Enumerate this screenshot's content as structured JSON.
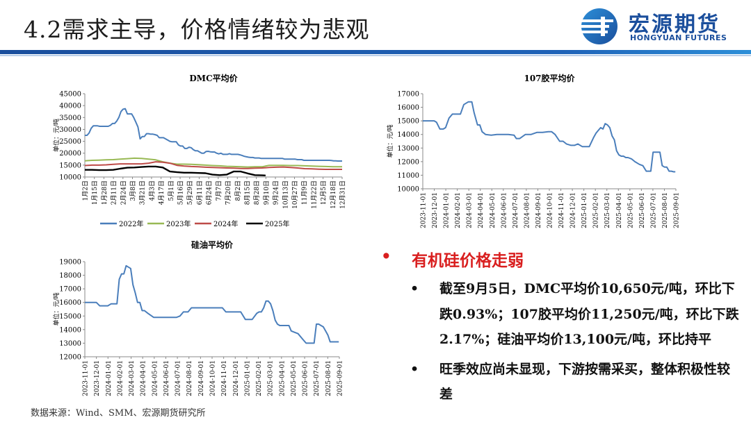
{
  "title": "4.2需求主导，价格情绪较为悲观",
  "logo": {
    "cn": "宏源期货",
    "en": "HONGYUAN FUTURES",
    "brand_color": "#1a4e9c"
  },
  "chart_data": [
    {
      "type": "line",
      "title": "DMC平均价",
      "ylabel": "单位：元/吨",
      "ylim": [
        10000,
        45000
      ],
      "yticks": [
        10000,
        15000,
        20000,
        25000,
        30000,
        35000,
        40000,
        45000
      ],
      "xticks": [
        "1月2日",
        "1月15日",
        "1月28日",
        "2月11日",
        "2月24日",
        "3月8日",
        "3月21日",
        "4月3日",
        "4月17日",
        "5月1日",
        "5月16日",
        "5月29日",
        "6月11日",
        "6月24日",
        "7月7日",
        "7月20日",
        "8月2日",
        "8月15日",
        "8月28日",
        "9月10日",
        "9月24日",
        "10月13日",
        "10月27日",
        "11月9日",
        "11月22日",
        "12月5日",
        "12月18日",
        "12月31日"
      ],
      "legend_position": "bottom",
      "series": [
        {
          "name": "2022年",
          "color": "#4a7ebb",
          "x": [
            0,
            3,
            6,
            9,
            12,
            15,
            18,
            21,
            24,
            27,
            30,
            33,
            36,
            39,
            42,
            45,
            48,
            51,
            54,
            57,
            60,
            63,
            66,
            69,
            72,
            75,
            78,
            81,
            84,
            87,
            90,
            93,
            96,
            99,
            102,
            105,
            108,
            111,
            114,
            117,
            120,
            123,
            126,
            129,
            132,
            135,
            138,
            141,
            144,
            147,
            150,
            153,
            156,
            159,
            162,
            165,
            168,
            171,
            174,
            177,
            180,
            183,
            186,
            189,
            192,
            195,
            198,
            201,
            204,
            207,
            210,
            213,
            216,
            219,
            222,
            225,
            228,
            231,
            234,
            237,
            240,
            243,
            246,
            249,
            252,
            255,
            258,
            261,
            264,
            267,
            270,
            273,
            276,
            279,
            282,
            285,
            288,
            291,
            294,
            297,
            300,
            303,
            306,
            309,
            312,
            315,
            318,
            321,
            324,
            327,
            330,
            333,
            336,
            339,
            342,
            345,
            348,
            351,
            354,
            357,
            360,
            363
          ],
          "y": [
            27500,
            27500,
            28500,
            30500,
            31500,
            31500,
            31500,
            31300,
            31300,
            31300,
            31300,
            31300,
            31700,
            32500,
            32500,
            33500,
            35000,
            37500,
            38500,
            38700,
            36500,
            36500,
            36500,
            35000,
            33000,
            31000,
            26000,
            27000,
            27000,
            28200,
            28200,
            28000,
            28000,
            27800,
            27500,
            26500,
            26500,
            26500,
            26000,
            25500,
            25000,
            24800,
            24800,
            24800,
            23500,
            23000,
            23000,
            22000,
            22000,
            22500,
            22300,
            21500,
            21000,
            21000,
            20500,
            20000,
            20000,
            20700,
            20800,
            20600,
            20500,
            20500,
            20000,
            19700,
            20000,
            19500,
            19500,
            19500,
            19800,
            19500,
            19500,
            19500,
            19500,
            19300,
            19000,
            18700,
            18500,
            18300,
            18200,
            18200,
            18000,
            18000,
            18000,
            17800,
            17800,
            17800,
            17800,
            17800,
            17800,
            17800,
            17800,
            17800,
            17800,
            17800,
            17500,
            17500,
            17500,
            17500,
            17500,
            17500,
            17300,
            17300,
            17300,
            17000,
            17000,
            17000,
            17000,
            17000,
            17000,
            17000,
            17000,
            17000,
            17000,
            17000,
            17000,
            17000,
            16900,
            16800,
            16800,
            16700,
            16700,
            16700
          ]
        },
        {
          "name": "2023年",
          "color": "#98b954",
          "x": [
            0,
            10,
            20,
            30,
            40,
            50,
            60,
            70,
            80,
            90,
            100,
            110,
            120,
            130,
            140,
            150,
            160,
            170,
            180,
            190,
            200,
            210,
            220,
            230,
            240,
            250,
            260,
            270,
            280,
            290,
            300,
            310,
            320,
            330,
            340,
            350,
            363
          ],
          "y": [
            16800,
            17000,
            17100,
            17200,
            17300,
            17500,
            17700,
            17900,
            17800,
            17500,
            17200,
            16400,
            15800,
            15400,
            15400,
            15300,
            15200,
            15000,
            14800,
            14700,
            14500,
            14400,
            14300,
            14200,
            14300,
            14300,
            14900,
            14900,
            14900,
            14800,
            14800,
            14700,
            14600,
            14500,
            14400,
            14300,
            14300
          ]
        },
        {
          "name": "2024年",
          "color": "#be4b48",
          "x": [
            0,
            10,
            20,
            30,
            40,
            50,
            60,
            70,
            80,
            90,
            100,
            110,
            120,
            130,
            140,
            150,
            160,
            170,
            180,
            190,
            200,
            210,
            220,
            230,
            240,
            250,
            260,
            270,
            280,
            290,
            300,
            310,
            320,
            330,
            340,
            350,
            363
          ],
          "y": [
            14800,
            15000,
            15000,
            15100,
            15300,
            15500,
            15500,
            15500,
            15500,
            15800,
            16400,
            16200,
            15800,
            14900,
            14600,
            14400,
            14300,
            14100,
            14000,
            13900,
            13800,
            13700,
            13600,
            13600,
            13700,
            13800,
            14000,
            14100,
            14200,
            14000,
            13800,
            13500,
            13400,
            13300,
            13200,
            13200,
            13200
          ]
        },
        {
          "name": "2025年",
          "color": "#000000",
          "x": [
            0,
            10,
            20,
            30,
            40,
            50,
            60,
            70,
            80,
            90,
            100,
            110,
            120,
            130,
            140,
            150,
            160,
            170,
            180,
            190,
            200,
            210,
            220,
            230,
            240,
            250,
            255
          ],
          "y": [
            13000,
            13000,
            12900,
            12900,
            13000,
            13500,
            13900,
            14000,
            14200,
            14400,
            14400,
            14000,
            12300,
            12000,
            11800,
            11800,
            11700,
            11600,
            11000,
            10800,
            11000,
            12300,
            12300,
            11500,
            10800,
            10700,
            10650
          ]
        }
      ]
    },
    {
      "type": "line",
      "title": "107胶平均价",
      "ylabel": "单位：元/吨",
      "ylim": [
        10000,
        17000
      ],
      "yticks": [
        10000,
        11000,
        12000,
        13000,
        14000,
        15000,
        16000,
        17000
      ],
      "xticks": [
        "2023-11-01",
        "2023-12-01",
        "2024-01-01",
        "2024-02-01",
        "2024-03-01",
        "2024-04-01",
        "2024-05-01",
        "2024-06-01",
        "2024-07-01",
        "2024-08-01",
        "2024-09-01",
        "2024-10-01",
        "2024-11-01",
        "2024-12-01",
        "2025-01-01",
        "2025-02-01",
        "2025-03-01",
        "2025-04-01",
        "2025-05-01",
        "2025-06-01",
        "2025-07-01",
        "2025-08-01",
        "2025-09-01"
      ],
      "series": [
        {
          "name": "",
          "color": "#4a7ebb",
          "x": [
            0,
            0.5,
            1,
            1.2,
            1.5,
            1.8,
            2,
            2.3,
            2.6,
            3,
            3.3,
            3.6,
            4,
            4.3,
            4.5,
            4.8,
            5,
            5.2,
            5.5,
            6,
            6.5,
            7,
            7.5,
            8,
            8.2,
            8.5,
            9,
            9.5,
            10,
            10.5,
            11,
            11.3,
            11.6,
            12,
            12.3,
            12.6,
            13,
            13.3,
            13.6,
            14,
            14.3,
            14.6,
            15,
            15.2,
            15.4,
            15.6,
            15.8,
            16,
            16.2,
            16.4,
            16.6,
            16.8,
            17,
            17.2,
            17.4,
            17.6,
            17.8,
            18,
            18.3,
            18.6,
            19,
            19.3,
            19.6,
            20,
            20.2,
            20.4,
            20.6,
            20.8,
            21,
            21.2,
            21.4,
            21.6,
            21.8,
            22,
            22.15
          ],
          "y": [
            15000,
            15000,
            15000,
            14900,
            14400,
            14400,
            14500,
            15200,
            15500,
            15500,
            15500,
            16200,
            16400,
            16400,
            15600,
            14700,
            14700,
            14200,
            14000,
            13950,
            14000,
            14000,
            14000,
            13950,
            13700,
            13700,
            14000,
            14000,
            14150,
            14150,
            14200,
            14200,
            14000,
            13500,
            13500,
            13300,
            13200,
            13200,
            13300,
            13100,
            13100,
            13100,
            13800,
            14100,
            14300,
            14500,
            14400,
            14800,
            14700,
            14500,
            13900,
            13600,
            12800,
            12500,
            12400,
            12400,
            12300,
            12300,
            12200,
            12000,
            11800,
            11700,
            11300,
            11300,
            12700,
            12700,
            12700,
            12700,
            11700,
            11600,
            11600,
            11300,
            11300,
            11250,
            11250
          ]
        }
      ]
    },
    {
      "type": "line",
      "title": "硅油平均价",
      "ylabel": "单位：元/吨",
      "ylim": [
        12000,
        19000
      ],
      "yticks": [
        12000,
        13000,
        14000,
        15000,
        16000,
        17000,
        18000,
        19000
      ],
      "xticks": [
        "2023-11-01",
        "2023-12-01",
        "2024-01-01",
        "2024-02-01",
        "2024-03-01",
        "2024-04-01",
        "2024-05-01",
        "2024-06-01",
        "2024-07-01",
        "2024-08-01",
        "2024-09-01",
        "2024-10-01",
        "2024-11-01",
        "2024-12-01",
        "2025-01-01",
        "2025-02-01",
        "2025-03-01",
        "2025-04-01",
        "2025-05-01",
        "2025-06-01",
        "2025-07-01",
        "2025-08-01",
        "2025-09-01"
      ],
      "series": [
        {
          "name": "",
          "color": "#4a7ebb",
          "x": [
            0,
            0.5,
            1,
            1.3,
            1.6,
            2,
            2.3,
            2.6,
            2.8,
            3,
            3.2,
            3.4,
            3.6,
            3.8,
            4,
            4.2,
            4.4,
            4.6,
            4.8,
            5,
            5.2,
            5.5,
            6,
            6.5,
            7,
            7.5,
            8,
            8.3,
            8.6,
            9,
            9.3,
            9.6,
            10,
            10.5,
            11,
            11.5,
            12,
            12.3,
            12.6,
            13,
            13.3,
            13.6,
            14,
            14.3,
            14.6,
            15,
            15.2,
            15.4,
            15.6,
            15.8,
            16,
            16.2,
            16.4,
            16.6,
            16.8,
            17,
            17.2,
            17.4,
            17.6,
            17.8,
            18,
            18.3,
            18.6,
            19,
            19.3,
            19.6,
            20,
            20.2,
            20.4,
            20.6,
            20.8,
            21,
            21.2,
            21.4,
            21.6,
            21.8,
            22,
            22.15
          ],
          "y": [
            16000,
            16000,
            16000,
            15750,
            15750,
            15750,
            15900,
            15900,
            15900,
            17700,
            18100,
            18100,
            18700,
            18600,
            18500,
            17300,
            16700,
            16000,
            16000,
            15400,
            15400,
            15200,
            14900,
            14900,
            14900,
            14900,
            14900,
            15000,
            15300,
            15300,
            15600,
            15600,
            15600,
            15600,
            15600,
            15600,
            15600,
            15300,
            15300,
            15300,
            15300,
            15300,
            14750,
            14750,
            14750,
            15200,
            15300,
            15300,
            15600,
            16100,
            16100,
            15900,
            15400,
            14700,
            14400,
            14300,
            14300,
            14300,
            14300,
            14300,
            13900,
            13800,
            13700,
            13300,
            13000,
            13000,
            13000,
            14400,
            14400,
            14300,
            14200,
            13900,
            13600,
            13100,
            13100,
            13100,
            13100,
            13100
          ]
        }
      ]
    }
  ],
  "bullets": {
    "heading": "有机硅价格走弱",
    "items": [
      "截至9月5日，DMC平均价10,650元/吨，环比下跌0.93%；107胶平均价11,250元/吨，环比下跌2.17%；硅油平均价13,100元/吨，环比持平",
      "旺季效应尚未显现，下游按需采买，整体积极性较差"
    ],
    "heading_color": "#d91f1f"
  },
  "source": "数据来源：Wind、SMM、宏源期货研究所"
}
